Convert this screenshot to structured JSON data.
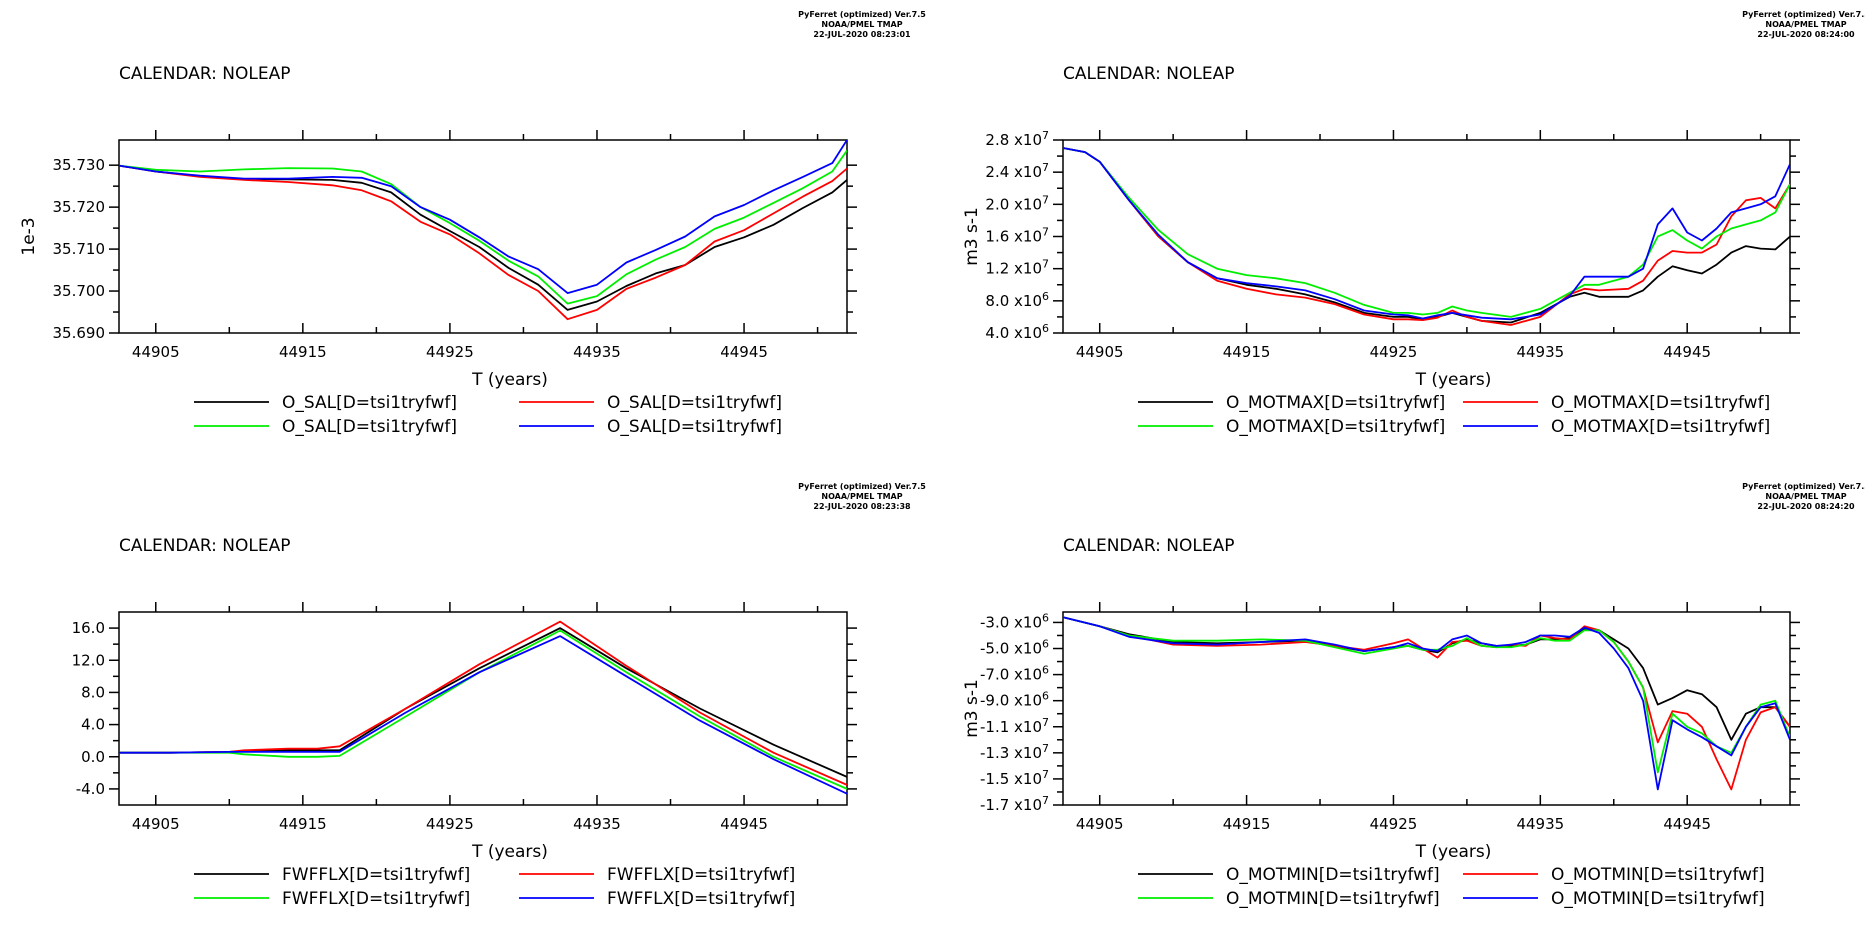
{
  "header": {
    "line1": "PyFerret (optimized) Ver.7.5",
    "line2": "NOAA/PMEL TMAP",
    "stamps": [
      "22-JUL-2020 08:23:01",
      "22-JUL-2020 08:24:00",
      "22-JUL-2020 08:23:38",
      "22-JUL-2020 08:24:20"
    ]
  },
  "colors": {
    "black": "#000000",
    "red": "#ff0000",
    "green": "#00ee00",
    "blue": "#0000ff"
  },
  "chart_data": [
    {
      "type": "line",
      "calendar": "CALENDAR: NOLEAP",
      "xlabel": "T (years)",
      "ylabel": "1e-3",
      "xlim": [
        44902.5,
        44952
      ],
      "ylim": [
        35.69,
        35.736
      ],
      "xticks": [
        "44905",
        "44915",
        "44925",
        "44935",
        "44945"
      ],
      "yticks": [
        {
          "v": 35.69,
          "label": "35.690"
        },
        {
          "v": 35.7,
          "label": "35.700"
        },
        {
          "v": 35.71,
          "label": "35.710"
        },
        {
          "v": 35.72,
          "label": "35.720"
        },
        {
          "v": 35.73,
          "label": "35.730"
        }
      ],
      "x": [
        44902.5,
        44905,
        44908,
        44911,
        44914,
        44917,
        44919,
        44921,
        44923,
        44925,
        44927,
        44929,
        44931,
        44933,
        44935,
        44937,
        44939,
        44941,
        44943,
        44945,
        44947,
        44949,
        44951,
        44952
      ],
      "series": [
        {
          "name": "O_SAL[D=tsi1tryfwf]",
          "color": "#000000",
          "values": [
            35.7299,
            35.7285,
            35.7274,
            35.7267,
            35.7266,
            35.7265,
            35.7258,
            35.7235,
            35.7182,
            35.7143,
            35.7105,
            35.7055,
            35.7015,
            35.6955,
            35.6975,
            35.7012,
            35.7042,
            35.7062,
            35.7105,
            35.7128,
            35.7158,
            35.7198,
            35.7235,
            35.7265
          ]
        },
        {
          "name": "O_SAL[D=tsi1tryfwf]",
          "color": "#ff0000",
          "values": [
            35.7299,
            35.7285,
            35.7272,
            35.7265,
            35.726,
            35.7252,
            35.724,
            35.7214,
            35.7165,
            35.7135,
            35.709,
            35.7038,
            35.7,
            35.6933,
            35.6955,
            35.7005,
            35.7032,
            35.7062,
            35.7118,
            35.7145,
            35.7185,
            35.7225,
            35.7262,
            35.7292
          ]
        },
        {
          "name": "O_SAL[D=tsi1tryfwf]",
          "color": "#00ee00",
          "values": [
            35.7299,
            35.7289,
            35.7285,
            35.729,
            35.7293,
            35.7292,
            35.7285,
            35.7255,
            35.72,
            35.7162,
            35.712,
            35.7072,
            35.7035,
            35.697,
            35.6988,
            35.704,
            35.7075,
            35.7105,
            35.7148,
            35.7175,
            35.721,
            35.7245,
            35.7285,
            35.7335
          ]
        },
        {
          "name": "O_SAL[D=tsi1tryfwf]",
          "color": "#0000ff",
          "values": [
            35.7299,
            35.7285,
            35.7275,
            35.7268,
            35.7268,
            35.7272,
            35.727,
            35.725,
            35.72,
            35.717,
            35.7128,
            35.7082,
            35.7052,
            35.6995,
            35.7015,
            35.7068,
            35.7098,
            35.713,
            35.7178,
            35.7205,
            35.724,
            35.7272,
            35.7305,
            35.736
          ]
        }
      ],
      "legend": [
        "O_SAL[D=tsi1tryfwf]",
        "O_SAL[D=tsi1tryfwf]",
        "O_SAL[D=tsi1tryfwf]",
        "O_SAL[D=tsi1tryfwf]"
      ]
    },
    {
      "type": "line",
      "calendar": "CALENDAR: NOLEAP",
      "xlabel": "T (years)",
      "ylabel": "m3 s-1",
      "xlim": [
        44902.5,
        44952
      ],
      "ylim": [
        4000000,
        28000000
      ],
      "xticks": [
        "44905",
        "44915",
        "44925",
        "44935",
        "44945"
      ],
      "yticks": [
        {
          "v": 4000000,
          "m": "4.0",
          "e": "6"
        },
        {
          "v": 8000000,
          "m": "8.0",
          "e": "6"
        },
        {
          "v": 12000000,
          "m": "1.2",
          "e": "7"
        },
        {
          "v": 16000000,
          "m": "1.6",
          "e": "7"
        },
        {
          "v": 20000000,
          "m": "2.0",
          "e": "7"
        },
        {
          "v": 24000000,
          "m": "2.4",
          "e": "7"
        },
        {
          "v": 28000000,
          "m": "2.8",
          "e": "7"
        }
      ],
      "x": [
        44902.5,
        44904,
        44905,
        44907,
        44909,
        44911,
        44913,
        44915,
        44917,
        44919,
        44921,
        44923,
        44925,
        44926,
        44927,
        44928,
        44929,
        44930,
        44931,
        44933,
        44935,
        44937,
        44938,
        44939,
        44941,
        44942,
        44943,
        44944,
        44945,
        44946,
        44947,
        44948,
        44949,
        44950,
        44951,
        44952
      ],
      "series": [
        {
          "name": "O_MOTMAX[D=tsi1tryfwf]",
          "color": "#000000",
          "values": [
            27000000,
            26500000,
            25300000,
            20500000,
            16000000,
            12800000,
            10800000,
            10000000,
            9500000,
            8800000,
            7800000,
            6500000,
            6000000,
            6000000,
            5700000,
            6000000,
            6500000,
            6000000,
            5500000,
            5300000,
            6500000,
            8500000,
            9000000,
            8500000,
            8500000,
            9300000,
            11000000,
            12300000,
            11800000,
            11400000,
            12500000,
            14000000,
            14800000,
            14500000,
            14400000,
            16000000
          ]
        },
        {
          "name": "O_MOTMAX[D=tsi1tryfwf]",
          "color": "#ff0000",
          "values": [
            27000000,
            26500000,
            25300000,
            20500000,
            16000000,
            12800000,
            10500000,
            9500000,
            8800000,
            8400000,
            7600000,
            6300000,
            5700000,
            5700000,
            5600000,
            5900000,
            6800000,
            6000000,
            5500000,
            5000000,
            6000000,
            8800000,
            9500000,
            9300000,
            9500000,
            10500000,
            13000000,
            14200000,
            14000000,
            14000000,
            15000000,
            18500000,
            20500000,
            20800000,
            19500000,
            22500000
          ]
        },
        {
          "name": "O_MOTMAX[D=tsi1tryfwf]",
          "color": "#00ee00",
          "values": [
            27000000,
            26500000,
            25300000,
            20800000,
            16800000,
            13800000,
            12000000,
            11200000,
            10800000,
            10200000,
            9000000,
            7500000,
            6500000,
            6500000,
            6300000,
            6500000,
            7300000,
            6800000,
            6500000,
            6000000,
            7000000,
            9000000,
            10000000,
            10000000,
            11000000,
            12500000,
            16000000,
            16800000,
            15500000,
            14500000,
            16000000,
            17000000,
            17500000,
            18000000,
            19000000,
            22500000
          ]
        },
        {
          "name": "O_MOTMAX[D=tsi1tryfwf]",
          "color": "#0000ff",
          "values": [
            27000000,
            26500000,
            25300000,
            20500000,
            16200000,
            12800000,
            10800000,
            10200000,
            9800000,
            9300000,
            8200000,
            6800000,
            6300000,
            6200000,
            5800000,
            6200000,
            6500000,
            6200000,
            5900000,
            5700000,
            6300000,
            8600000,
            11000000,
            11000000,
            11000000,
            12000000,
            17500000,
            19500000,
            16500000,
            15500000,
            17000000,
            19000000,
            19500000,
            20000000,
            21000000,
            25000000
          ]
        }
      ],
      "legend": [
        "O_MOTMAX[D=tsi1tryfwf]",
        "O_MOTMAX[D=tsi1tryfwf]",
        "O_MOTMAX[D=tsi1tryfwf]",
        "O_MOTMAX[D=tsi1tryfwf]"
      ]
    },
    {
      "type": "line",
      "calendar": "CALENDAR: NOLEAP",
      "xlabel": "T (years)",
      "ylabel": "",
      "xlim": [
        44902.5,
        44952
      ],
      "ylim": [
        -6,
        18
      ],
      "xticks": [
        "44905",
        "44915",
        "44925",
        "44935",
        "44945"
      ],
      "yticks": [
        {
          "v": -4,
          "label": "-4.0"
        },
        {
          "v": 0,
          "label": "0.0"
        },
        {
          "v": 4,
          "label": "4.0"
        },
        {
          "v": 8,
          "label": "8.0"
        },
        {
          "v": 12,
          "label": "12.0"
        },
        {
          "v": 16,
          "label": "16.0"
        }
      ],
      "x": [
        44902.5,
        44906,
        44910,
        44911,
        44914,
        44916,
        44917.5,
        44922,
        44927,
        44932.5,
        44937,
        44942,
        44947,
        44952
      ],
      "series": [
        {
          "name": "FWFFLX[D=tsi1tryfwf]",
          "color": "#000000",
          "values": [
            0.5,
            0.5,
            0.6,
            0.7,
            0.8,
            0.8,
            0.8,
            6.0,
            11.0,
            16.0,
            11.0,
            6.0,
            1.5,
            -2.5
          ]
        },
        {
          "name": "FWFFLX[D=tsi1tryfwf]",
          "color": "#ff0000",
          "values": [
            0.5,
            0.5,
            0.6,
            0.8,
            1.0,
            1.0,
            1.3,
            6.0,
            11.5,
            16.8,
            11.3,
            5.5,
            0.5,
            -3.5
          ]
        },
        {
          "name": "FWFFLX[D=tsi1tryfwf]",
          "color": "#00ee00",
          "values": [
            0.5,
            0.5,
            0.5,
            0.3,
            0.0,
            0.0,
            0.1,
            5.0,
            10.5,
            15.7,
            10.5,
            5.0,
            0.0,
            -4.0
          ]
        },
        {
          "name": "FWFFLX[D=tsi1tryfwf]",
          "color": "#0000ff",
          "values": [
            0.5,
            0.5,
            0.6,
            0.6,
            0.6,
            0.6,
            0.6,
            5.5,
            10.5,
            15.0,
            10.0,
            4.5,
            -0.3,
            -4.6
          ]
        }
      ],
      "legend": [
        "FWFFLX[D=tsi1tryfwf]",
        "FWFFLX[D=tsi1tryfwf]",
        "FWFFLX[D=tsi1tryfwf]",
        "FWFFLX[D=tsi1tryfwf]"
      ]
    },
    {
      "type": "line",
      "calendar": "CALENDAR: NOLEAP",
      "xlabel": "T (years)",
      "ylabel": "m3 s-1",
      "xlim": [
        44902.5,
        44952
      ],
      "ylim": [
        -17000000,
        -2200000
      ],
      "xticks": [
        "44905",
        "44915",
        "44925",
        "44935",
        "44945"
      ],
      "yticks": [
        {
          "v": -3000000,
          "m": "-3.0",
          "e": "6"
        },
        {
          "v": -5000000,
          "m": "-5.0",
          "e": "6"
        },
        {
          "v": -7000000,
          "m": "-7.0",
          "e": "6"
        },
        {
          "v": -9000000,
          "m": "-9.0",
          "e": "6"
        },
        {
          "v": -11000000,
          "m": "-1.1",
          "e": "7"
        },
        {
          "v": -13000000,
          "m": "-1.3",
          "e": "7"
        },
        {
          "v": -15000000,
          "m": "-1.5",
          "e": "7"
        },
        {
          "v": -17000000,
          "m": "-1.7",
          "e": "7"
        }
      ],
      "x": [
        44902.5,
        44905,
        44907,
        44910,
        44913,
        44916,
        44919,
        44921,
        44923,
        44925,
        44926,
        44927,
        44928,
        44929,
        44930,
        44931,
        44932,
        44933,
        44934,
        44935,
        44936,
        44937,
        44938,
        44939,
        44940,
        44941,
        44942,
        44943,
        44944,
        44945,
        44946,
        44947,
        44948,
        44949,
        44950,
        44951,
        44952
      ],
      "series": [
        {
          "name": "O_MOTMIN[D=tsi1tryfwf]",
          "color": "#000000",
          "values": [
            -2600000,
            -3300000,
            -3900000,
            -4500000,
            -4600000,
            -4500000,
            -4400000,
            -4800000,
            -5200000,
            -4900000,
            -4800000,
            -5100000,
            -5300000,
            -4600000,
            -4300000,
            -4600000,
            -4800000,
            -4800000,
            -4700000,
            -4300000,
            -4300000,
            -4200000,
            -3500000,
            -3600000,
            -4300000,
            -5000000,
            -6500000,
            -9300000,
            -8800000,
            -8200000,
            -8500000,
            -9500000,
            -12000000,
            -10000000,
            -9500000,
            -9500000,
            -11000000
          ]
        },
        {
          "name": "O_MOTMIN[D=tsi1tryfwf]",
          "color": "#ff0000",
          "values": [
            -2600000,
            -3300000,
            -4000000,
            -4700000,
            -4800000,
            -4700000,
            -4500000,
            -4800000,
            -5100000,
            -4600000,
            -4300000,
            -5000000,
            -5700000,
            -4500000,
            -4400000,
            -4800000,
            -4900000,
            -4700000,
            -4800000,
            -4000000,
            -4200000,
            -4300000,
            -3300000,
            -3600000,
            -4500000,
            -6000000,
            -8000000,
            -12200000,
            -9800000,
            -10000000,
            -11000000,
            -13500000,
            -15800000,
            -12000000,
            -9900000,
            -9500000,
            -11000000
          ]
        },
        {
          "name": "O_MOTMIN[D=tsi1tryfwf]",
          "color": "#00ee00",
          "values": [
            -2600000,
            -3300000,
            -4000000,
            -4400000,
            -4400000,
            -4300000,
            -4400000,
            -4900000,
            -5400000,
            -5000000,
            -4800000,
            -5100000,
            -5100000,
            -4800000,
            -4200000,
            -4800000,
            -4900000,
            -4900000,
            -4700000,
            -4200000,
            -4400000,
            -4400000,
            -3600000,
            -3600000,
            -4500000,
            -6000000,
            -8000000,
            -14500000,
            -10000000,
            -11000000,
            -11500000,
            -12500000,
            -13000000,
            -11000000,
            -9300000,
            -9000000,
            -11800000
          ]
        },
        {
          "name": "O_MOTMIN[D=tsi1tryfwf]",
          "color": "#0000ff",
          "values": [
            -2600000,
            -3300000,
            -4100000,
            -4600000,
            -4700000,
            -4500000,
            -4300000,
            -4700000,
            -5200000,
            -4900000,
            -4600000,
            -5000000,
            -5200000,
            -4300000,
            -4000000,
            -4600000,
            -4800000,
            -4700000,
            -4500000,
            -4000000,
            -4000000,
            -4100000,
            -3400000,
            -3800000,
            -5000000,
            -6500000,
            -9000000,
            -15800000,
            -10500000,
            -11200000,
            -11800000,
            -12500000,
            -13200000,
            -11000000,
            -9500000,
            -9200000,
            -12000000
          ]
        }
      ],
      "legend": [
        "O_MOTMIN[D=tsi1tryfwf]",
        "O_MOTMIN[D=tsi1tryfwf]",
        "O_MOTMIN[D=tsi1tryfwf]",
        "O_MOTMIN[D=tsi1tryfwf]"
      ]
    }
  ]
}
